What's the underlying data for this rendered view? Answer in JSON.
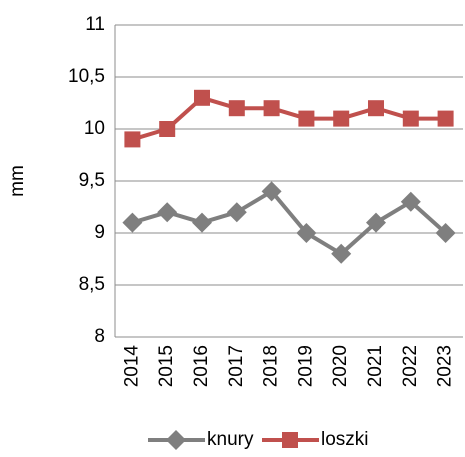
{
  "chart_data": {
    "type": "line",
    "ylabel": "mm",
    "categories": [
      "2014",
      "2015",
      "2016",
      "2017",
      "2018",
      "2019",
      "2020",
      "2021",
      "2022",
      "2023"
    ],
    "series": [
      {
        "name": "knury",
        "color": "#7f7f7f",
        "marker": "diamond",
        "values": [
          9.1,
          9.2,
          9.1,
          9.2,
          9.4,
          9.0,
          8.8,
          9.1,
          9.3,
          9.0
        ]
      },
      {
        "name": "loszki",
        "color": "#c0504d",
        "marker": "square",
        "values": [
          9.9,
          10.0,
          10.3,
          10.2,
          10.2,
          10.1,
          10.1,
          10.2,
          10.1,
          10.1
        ]
      }
    ],
    "ylim": [
      8,
      11
    ],
    "yticks": [
      8,
      {
        "value": 8.5,
        "label": "8,5"
      },
      9,
      {
        "value": 9.5,
        "label": "9,5"
      },
      10,
      {
        "value": 10.5,
        "label": "10,5"
      },
      11
    ],
    "grid": true,
    "legend": "bottom"
  }
}
